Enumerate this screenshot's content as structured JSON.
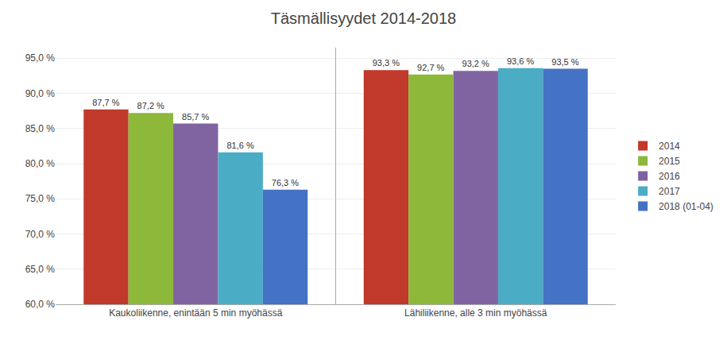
{
  "chart_data": {
    "type": "bar",
    "title": "Täsmällisyydet 2014-2018",
    "categories": [
      "Kaukoliikenne, enintään 5 min myöhässä",
      "Lähiliikenne, alle 3 min myöhässä"
    ],
    "series": [
      {
        "name": "2014",
        "color": "#c0392b",
        "values": [
          87.7,
          93.3
        ],
        "value_labels": [
          "87,7 %",
          "93,3 %"
        ]
      },
      {
        "name": "2015",
        "color": "#8db83a",
        "values": [
          87.2,
          92.7
        ],
        "value_labels": [
          "87,2 %",
          "92,7 %"
        ]
      },
      {
        "name": "2016",
        "color": "#8064a2",
        "values": [
          85.7,
          93.2
        ],
        "value_labels": [
          "85,7 %",
          "93,2 %"
        ]
      },
      {
        "name": "2017",
        "color": "#4bacc6",
        "values": [
          81.6,
          93.6
        ],
        "value_labels": [
          "81,6 %",
          "93,6 %"
        ]
      },
      {
        "name": "2018 (01-04)",
        "color": "#4472c4",
        "values": [
          76.3,
          93.5
        ],
        "value_labels": [
          "76,3 %",
          "93,5 %"
        ]
      }
    ],
    "ylim": [
      60.0,
      96.5
    ],
    "yticks": [
      {
        "value": 60.0,
        "label": "60,0 %"
      },
      {
        "value": 65.0,
        "label": "65,0 %"
      },
      {
        "value": 70.0,
        "label": "70,0 %"
      },
      {
        "value": 75.0,
        "label": "75,0 %"
      },
      {
        "value": 80.0,
        "label": "80,0 %"
      },
      {
        "value": 85.0,
        "label": "85,0 %"
      },
      {
        "value": 90.0,
        "label": "90,0 %"
      },
      {
        "value": 95.0,
        "label": "95,0 %"
      }
    ],
    "grid": true,
    "legend": "right",
    "data_labels": true
  }
}
